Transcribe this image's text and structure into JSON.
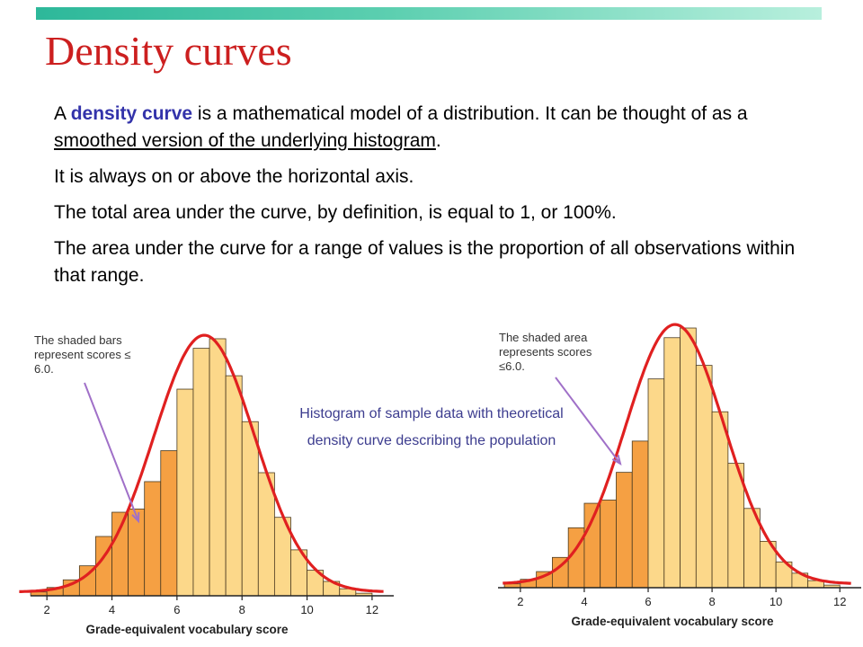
{
  "slide": {
    "title": "Density curves",
    "p1_a": "A ",
    "p1_kw": "density curve",
    "p1_b": " is a mathematical model of a distribution. It can be thought of as a ",
    "p1_ul": "smoothed version of the underlying histogram",
    "p1_c": ".",
    "p2": "It is always on or above the horizontal axis.",
    "p3": "The total area under the curve, by definition, is equal to 1, or 100%.",
    "p4": "The area under the curve for a range of values is the proportion of all observations within that range.",
    "caption": "Histogram of sample data with theoretical density curve describing the population"
  },
  "colors": {
    "title": "#cc1f1f",
    "keyword": "#3333aa",
    "caption": "#3d3d8f",
    "bar_light": "#fcd88a",
    "bar_dark": "#f5a043",
    "bar_edge": "#4a3a20",
    "curve": "#e02020",
    "arrow": "#a070c8",
    "axis": "#222222"
  },
  "chart_data": [
    {
      "type": "bar",
      "categories": [
        "1.5",
        "2",
        "2.5",
        "3",
        "3.5",
        "4",
        "4.5",
        "5",
        "5.5",
        "6",
        "6.5",
        "7",
        "7.5",
        "8",
        "8.5",
        "9",
        "9.5",
        "10",
        "10.5",
        "11",
        "11.5"
      ],
      "bin_width": 0.5,
      "values": [
        0.012,
        0.026,
        0.05,
        0.094,
        0.186,
        0.262,
        0.272,
        0.358,
        0.455,
        0.648,
        0.776,
        0.806,
        0.69,
        0.546,
        0.386,
        0.246,
        0.144,
        0.08,
        0.045,
        0.022,
        0.008
      ],
      "shaded_max": 6.0,
      "curve": {
        "mean": 6.84,
        "sd": 1.55
      },
      "xlim": [
        1,
        12.5
      ],
      "ylim": [
        0,
        0.82
      ],
      "xticks": [
        "2",
        "4",
        "6",
        "8",
        "10",
        "12"
      ],
      "xlabel": "Grade-equivalent vocabulary score",
      "annotation": "The shaded bars represent scores ≤ 6.0."
    },
    {
      "type": "bar",
      "categories": [
        "1.5",
        "2",
        "2.5",
        "3",
        "3.5",
        "4",
        "4.5",
        "5",
        "5.5",
        "6",
        "6.5",
        "7",
        "7.5",
        "8",
        "8.5",
        "9",
        "9.5",
        "10",
        "10.5",
        "11",
        "11.5"
      ],
      "bin_width": 0.5,
      "values": [
        0.012,
        0.026,
        0.05,
        0.094,
        0.186,
        0.262,
        0.272,
        0.358,
        0.455,
        0.648,
        0.776,
        0.806,
        0.69,
        0.546,
        0.386,
        0.246,
        0.144,
        0.08,
        0.045,
        0.022,
        0.008
      ],
      "shaded_max": 6.0,
      "curve": {
        "mean": 6.84,
        "sd": 1.55
      },
      "xlim": [
        1.3,
        12.5
      ],
      "ylim": [
        0,
        0.82
      ],
      "xticks": [
        "2",
        "4",
        "6",
        "8",
        "10",
        "12"
      ],
      "xlabel": "Grade-equivalent vocabulary score",
      "annotation": "The shaded area represents scores ≤6.0."
    }
  ]
}
